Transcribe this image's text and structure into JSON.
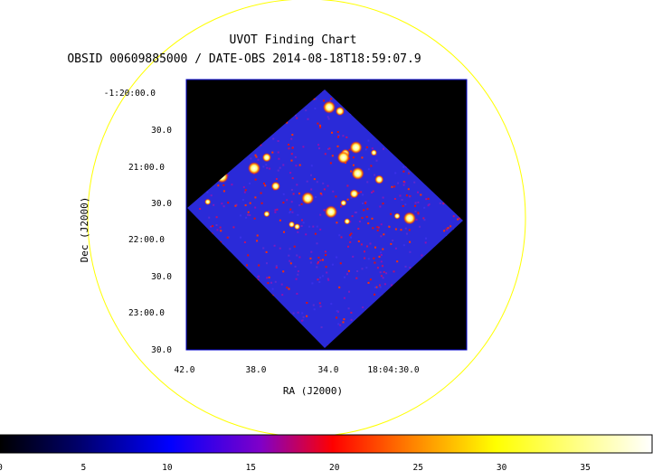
{
  "colors": {
    "background": "#ffffff",
    "circle": "#ffff00",
    "frame": "#0000cc",
    "sky": "#2a2ad8",
    "colormap": [
      "#000000",
      "#00006a",
      "#0000ff",
      "#8000c8",
      "#ff0000",
      "#ffa000",
      "#ffff00",
      "#ffffff"
    ]
  },
  "chart": {
    "title": "UVOT Finding Chart",
    "subtitle": "OBSID 00609885000 / DATE-OBS 2014-08-18T18:59:07.9",
    "xlabel": "RA (J2000)",
    "ylabel": "Dec (J2000)"
  },
  "chart_data": {
    "type": "heatmap",
    "title": "UVOT Finding Chart",
    "subtitle": "OBSID 00609885000 / DATE-OBS 2014-08-18T18:59:07.9",
    "xlabel": "RA (J2000)",
    "ylabel": "Dec (J2000)",
    "x_ticks": [
      "42.0",
      "38.0",
      "34.0",
      "18:04:30.0"
    ],
    "y_ticks": [
      "-1:20:00.0",
      "30.0",
      "21:00.0",
      "30.0",
      "22:00.0",
      "30.0",
      "23:00.0",
      "30.0"
    ],
    "colorbar": {
      "ticks": [
        "0",
        "5",
        "10",
        "15",
        "20",
        "25",
        "30",
        "35"
      ],
      "range": [
        0,
        39
      ]
    },
    "sources": [
      {
        "ra": 34.0,
        "dec": -1.3387,
        "v": 39
      },
      {
        "ra": 33.4,
        "dec": -1.3402,
        "v": 30
      },
      {
        "ra": 32.5,
        "dec": -1.354,
        "v": 39
      },
      {
        "ra": 33.1,
        "dec": -1.3563,
        "v": 30
      },
      {
        "ra": 38.9,
        "dec": -1.3545,
        "v": 25
      },
      {
        "ra": 37.5,
        "dec": -1.3578,
        "v": 30
      },
      {
        "ra": 38.2,
        "dec": -1.3619,
        "v": 39
      },
      {
        "ra": 40.0,
        "dec": -1.3651,
        "v": 39
      },
      {
        "ra": 37.0,
        "dec": -1.3687,
        "v": 30
      },
      {
        "ra": 35.2,
        "dec": -1.3733,
        "v": 39
      },
      {
        "ra": 33.9,
        "dec": -1.3785,
        "v": 39
      },
      {
        "ra": 40.8,
        "dec": -1.3747,
        "v": 25
      },
      {
        "ra": 36.1,
        "dec": -1.3833,
        "v": 25
      },
      {
        "ra": 29.5,
        "dec": -1.3809,
        "v": 39
      },
      {
        "ra": 30.2,
        "dec": -1.3801,
        "v": 25
      },
      {
        "ra": 37.5,
        "dec": -1.3793,
        "v": 25
      },
      {
        "ra": 35.8,
        "dec": -1.3841,
        "v": 25
      },
      {
        "ra": 33.0,
        "dec": -1.3821,
        "v": 25
      },
      {
        "ra": 33.2,
        "dec": -1.3751,
        "v": 25
      },
      {
        "ra": 32.6,
        "dec": -1.3716,
        "v": 30
      },
      {
        "ra": 31.2,
        "dec": -1.3662,
        "v": 30
      },
      {
        "ra": 32.4,
        "dec": -1.3639,
        "v": 39
      },
      {
        "ra": 33.2,
        "dec": -1.3578,
        "v": 39
      },
      {
        "ra": 31.5,
        "dec": -1.356,
        "v": 25
      }
    ]
  }
}
